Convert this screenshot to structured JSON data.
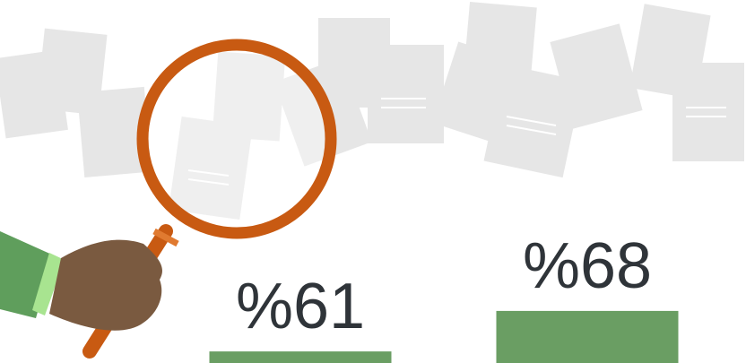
{
  "chart_data": {
    "type": "bar",
    "categories": [
      null,
      null
    ],
    "values": [
      61,
      68
    ],
    "value_labels": [
      "%61",
      "%68"
    ],
    "color": "#6a9e63",
    "ylim": [
      59,
      70
    ]
  }
}
